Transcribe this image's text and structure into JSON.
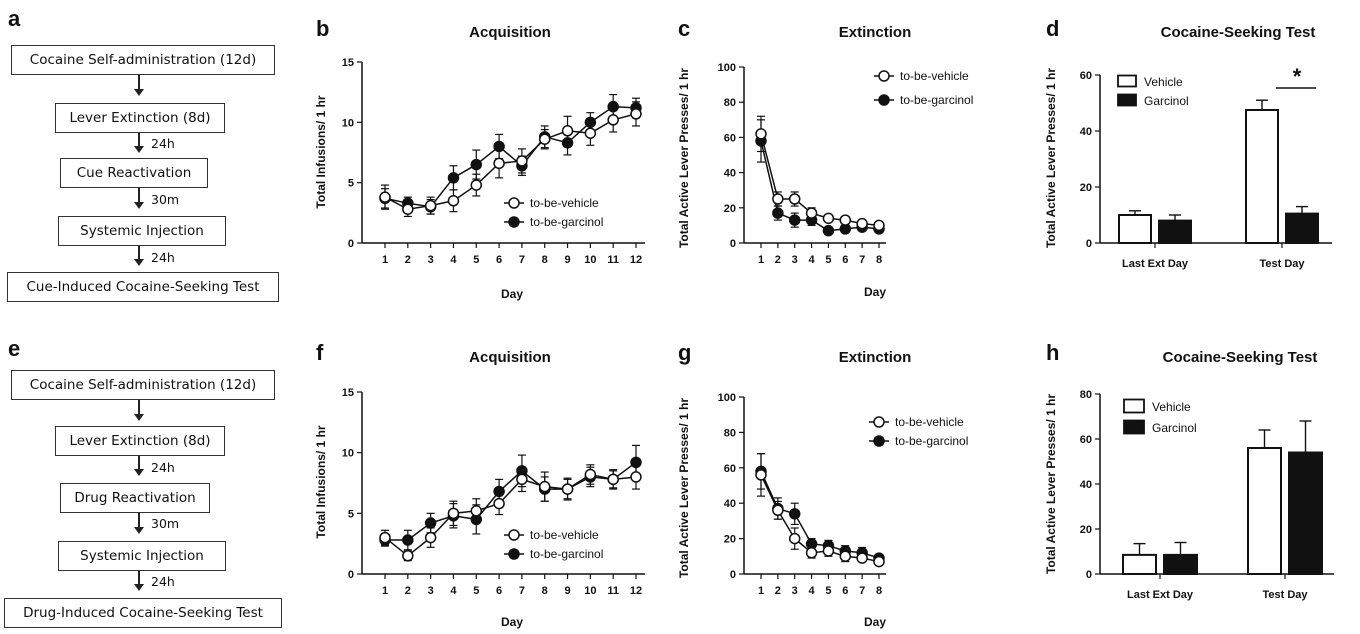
{
  "panels": {
    "a": {
      "letter": "a",
      "steps": [
        "Cocaine Self-administration (12d)",
        "Lever Extinction (8d)",
        "Cue Reactivation",
        "Systemic Injection",
        "Cue-Induced Cocaine-Seeking Test"
      ],
      "delays": [
        "",
        "24h",
        "30m",
        "24h"
      ]
    },
    "e": {
      "letter": "e",
      "steps": [
        "Cocaine Self-administration (12d)",
        "Lever Extinction (8d)",
        "Drug Reactivation",
        "Systemic Injection",
        "Drug-Induced Cocaine-Seeking Test"
      ],
      "delays": [
        "",
        "24h",
        "30m",
        "24h"
      ]
    }
  },
  "chart_data": [
    {
      "panel": "b",
      "type": "line",
      "title": "Acquisition",
      "xlabel": "Day",
      "ylabel": "Total Infusions/ 1 hr",
      "xlim": [
        0.5,
        12.5
      ],
      "ylim": [
        0,
        15
      ],
      "xticks": [
        1,
        2,
        3,
        4,
        5,
        6,
        7,
        8,
        9,
        10,
        11,
        12
      ],
      "yticks": [
        0,
        5,
        10,
        15
      ],
      "legend_position": "bottom-right",
      "series": [
        {
          "name": "to-be-vehicle",
          "marker": "open",
          "x": [
            1,
            2,
            3,
            4,
            5,
            6,
            7,
            8,
            9,
            10,
            11,
            12
          ],
          "y": [
            3.8,
            2.8,
            3.1,
            3.5,
            4.8,
            6.6,
            6.8,
            8.6,
            9.3,
            9.1,
            10.2,
            10.7
          ],
          "err": [
            1.0,
            0.6,
            0.7,
            0.9,
            0.9,
            1.2,
            1.0,
            0.8,
            1.2,
            1.0,
            1.0,
            1.0
          ]
        },
        {
          "name": "to-be-garcinol",
          "marker": "filled",
          "x": [
            1,
            2,
            3,
            4,
            5,
            6,
            7,
            8,
            9,
            10,
            11,
            12
          ],
          "y": [
            3.7,
            3.3,
            3.0,
            5.4,
            6.5,
            8.0,
            6.4,
            8.8,
            8.3,
            10.0,
            11.3,
            11.2
          ],
          "err": [
            0.8,
            0.5,
            0.6,
            1.0,
            1.2,
            1.0,
            0.8,
            0.9,
            1.0,
            0.8,
            1.0,
            0.8
          ]
        }
      ]
    },
    {
      "panel": "c",
      "type": "line",
      "title": "Extinction",
      "xlabel": "Day",
      "ylabel": "Total Active Lever Presses/ 1 hr",
      "xlim": [
        0.6,
        8.4
      ],
      "ylim": [
        0,
        100
      ],
      "xticks": [
        1,
        2,
        3,
        4,
        5,
        6,
        7,
        8
      ],
      "yticks": [
        0,
        20,
        40,
        60,
        80,
        100
      ],
      "legend_position": "top-right",
      "series": [
        {
          "name": "to-be-vehicle",
          "marker": "open",
          "x": [
            1,
            2,
            3,
            4,
            5,
            6,
            7,
            8
          ],
          "y": [
            62,
            25,
            25,
            17,
            14,
            13,
            11,
            10
          ],
          "err": [
            10,
            4,
            4,
            3,
            2,
            2,
            2,
            2
          ]
        },
        {
          "name": "to-be-garcinol",
          "marker": "filled",
          "x": [
            1,
            2,
            3,
            4,
            5,
            6,
            7,
            8
          ],
          "y": [
            58,
            17,
            13,
            13,
            7,
            8,
            9,
            8
          ],
          "err": [
            12,
            4,
            4,
            3,
            2,
            2,
            2,
            2
          ]
        }
      ]
    },
    {
      "panel": "d",
      "type": "bar",
      "title": "Cocaine-Seeking Test",
      "xlabel": "",
      "ylabel": "Total Active Lever Presses/ 1 hr",
      "categories": [
        "Last Ext Day",
        "Test Day"
      ],
      "ylim": [
        0,
        60
      ],
      "yticks": [
        0,
        20,
        40,
        60
      ],
      "legend_position": "top-left",
      "series": [
        {
          "name": "Vehicle",
          "fill": "white",
          "values": [
            10,
            47.5
          ],
          "err": [
            1.5,
            3.5
          ]
        },
        {
          "name": "Garcinol",
          "fill": "black",
          "values": [
            8,
            10.5
          ],
          "err": [
            2,
            2.5
          ]
        }
      ],
      "annotations": [
        {
          "text": "*",
          "category": "Test Day"
        }
      ]
    },
    {
      "panel": "f",
      "type": "line",
      "title": "Acquisition",
      "xlabel": "Day",
      "ylabel": "Total Infusions/ 1 hr",
      "xlim": [
        0.5,
        12.5
      ],
      "ylim": [
        0,
        15
      ],
      "xticks": [
        1,
        2,
        3,
        4,
        5,
        6,
        7,
        8,
        9,
        10,
        11,
        12
      ],
      "yticks": [
        0,
        5,
        10,
        15
      ],
      "legend_position": "bottom-right",
      "series": [
        {
          "name": "to-be-vehicle",
          "marker": "open",
          "x": [
            1,
            2,
            3,
            4,
            5,
            6,
            7,
            8,
            9,
            10,
            11,
            12
          ],
          "y": [
            3.0,
            1.5,
            3.0,
            5.0,
            5.2,
            5.8,
            7.8,
            7.2,
            7.0,
            8.2,
            7.8,
            8.0
          ],
          "err": [
            0.6,
            0.4,
            0.8,
            1.0,
            1.0,
            0.9,
            1.0,
            1.2,
            0.9,
            0.8,
            0.7,
            1.0
          ]
        },
        {
          "name": "to-be-garcinol",
          "marker": "filled",
          "x": [
            1,
            2,
            3,
            4,
            5,
            6,
            7,
            8,
            9,
            10,
            11,
            12
          ],
          "y": [
            2.8,
            2.8,
            4.2,
            4.8,
            4.5,
            6.8,
            8.5,
            7.0,
            7.0,
            8.0,
            7.8,
            9.2
          ],
          "err": [
            0.5,
            0.8,
            0.8,
            1.0,
            1.2,
            1.0,
            1.3,
            1.0,
            0.8,
            0.8,
            0.8,
            1.4
          ]
        }
      ]
    },
    {
      "panel": "g",
      "type": "line",
      "title": "Extinction",
      "xlabel": "Day",
      "ylabel": "Total Active Lever Presses/ 1 hr",
      "xlim": [
        0.6,
        8.4
      ],
      "ylim": [
        0,
        100
      ],
      "xticks": [
        1,
        2,
        3,
        4,
        5,
        6,
        7,
        8
      ],
      "yticks": [
        0,
        20,
        40,
        60,
        80,
        100
      ],
      "legend_position": "top-right",
      "series": [
        {
          "name": "to-be-vehicle",
          "marker": "open",
          "x": [
            1,
            2,
            3,
            4,
            5,
            6,
            7,
            8
          ],
          "y": [
            56,
            36,
            20,
            12,
            13,
            10,
            9,
            7
          ],
          "err": [
            12,
            5,
            6,
            3,
            3,
            3,
            2,
            2
          ]
        },
        {
          "name": "to-be-garcinol",
          "marker": "filled",
          "x": [
            1,
            2,
            3,
            4,
            5,
            6,
            7,
            8
          ],
          "y": [
            58,
            37,
            34,
            17,
            16,
            13,
            12,
            9
          ],
          "err": [
            10,
            6,
            6,
            3,
            3,
            3,
            3,
            2
          ]
        }
      ]
    },
    {
      "panel": "h",
      "type": "bar",
      "title": "Cocaine-Seeking Test",
      "xlabel": "",
      "ylabel": "Total Active Lever Presses/ 1 hr",
      "categories": [
        "Last Ext Day",
        "Test Day"
      ],
      "ylim": [
        0,
        80
      ],
      "yticks": [
        0,
        20,
        40,
        60,
        80
      ],
      "legend_position": "top-left",
      "series": [
        {
          "name": "Vehicle",
          "fill": "white",
          "values": [
            8.5,
            56
          ],
          "err": [
            5,
            8
          ]
        },
        {
          "name": "Garcinol",
          "fill": "black",
          "values": [
            8.5,
            54
          ],
          "err": [
            5.5,
            14
          ]
        }
      ],
      "annotations": []
    }
  ]
}
